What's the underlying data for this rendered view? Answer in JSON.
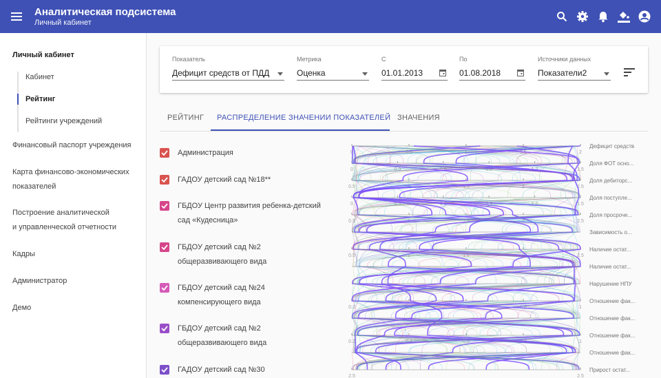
{
  "header": {
    "title": "Аналитическая подсистема",
    "subtitle": "Личный кабинет"
  },
  "sidebar": {
    "section_title": "Личный кабинет",
    "sub_items": [
      {
        "label": "Кабинет"
      },
      {
        "label": "Рейтинг"
      },
      {
        "label": "Рейтинги учреждений"
      }
    ],
    "items": [
      {
        "line1": "Финансовый паспорт учреждения",
        "line2": ""
      },
      {
        "line1": "Карта финансово-экономических",
        "line2": "показателей"
      },
      {
        "line1": "Построение аналитической",
        "line2": "и управленческой отчетности"
      },
      {
        "line1": "Кадры",
        "line2": ""
      },
      {
        "line1": "Администратор",
        "line2": ""
      },
      {
        "line1": "Демо",
        "line2": ""
      }
    ]
  },
  "filters": {
    "indicator": {
      "label": "Показатель",
      "value": "Дефицит средств от ПДД"
    },
    "metric": {
      "label": "Метрика",
      "value": "Оценка"
    },
    "from": {
      "label": "С",
      "value": "01.01.2013"
    },
    "to": {
      "label": "По",
      "value": "01.08.2018"
    },
    "sources": {
      "label": "Источники данных",
      "value": "Показатели2"
    }
  },
  "tabs": [
    {
      "label": "РЕЙТИНГ"
    },
    {
      "label": "РАСПРЕДЕЛЕНИЕ ЗНАЧЕНИИ ПОКАЗАТЕЛЕЙ"
    },
    {
      "label": "ЗНАЧЕНИЯ"
    }
  ],
  "active_tab_index": 1,
  "legend": [
    {
      "line1": "Администрация",
      "line2": "",
      "color": "#d9534f"
    },
    {
      "line1": "ГАДОУ детский сад №18**",
      "line2": "",
      "color": "#d9534f"
    },
    {
      "line1": "ГБДОУ Центр развития ребенка-детский",
      "line2": "сад «Кудесница»",
      "color": "#d6458a"
    },
    {
      "line1": "ГБДОУ детский сад №2",
      "line2": "общеразвивающего вида",
      "color": "#d6458a"
    },
    {
      "line1": "ГБДОУ детский сад №24",
      "line2": "компенсирующего вида",
      "color": "#d65bb8"
    },
    {
      "line1": "ГБДОУ детский сад №2",
      "line2": "общеразвивающего вида",
      "color": "#9a4fc9"
    },
    {
      "line1": "ГАДОУ детский сад №30",
      "line2": "",
      "color": "#7d4fc9"
    }
  ],
  "chart_data": {
    "type": "parallel-coordinates",
    "axes": [
      {
        "label": "Дефицит средств",
        "ticks": [
          "0",
          "0.5",
          "1",
          "1.5",
          "2"
        ]
      },
      {
        "label": "Доля ФОТ осно...",
        "ticks": [
          "0",
          "0.3",
          "0.6",
          "0.9",
          "1.2",
          "1.5"
        ]
      },
      {
        "label": "Доля дебиторс...",
        "ticks": [
          "0.5",
          "1",
          "1.5",
          "2",
          "2.5"
        ]
      },
      {
        "label": "Доля поступле...",
        "ticks": [
          "0",
          "0.3",
          "0.6",
          "0.9",
          "1.2",
          "1.5"
        ]
      },
      {
        "label": "Доля просроче...",
        "ticks": [
          "0.5",
          "1",
          "1.5",
          "2",
          "2.5"
        ]
      },
      {
        "label": "Зависимость о...",
        "ticks": []
      },
      {
        "label": "Наличие остат...",
        "ticks": [
          "0.5",
          "1",
          "1.5",
          "2",
          "2.5"
        ]
      },
      {
        "label": "Наличие остат...",
        "ticks": []
      },
      {
        "label": "Нарушение НПУ",
        "ticks": []
      },
      {
        "label": "Отношение фак...",
        "ticks": [
          "0.2",
          "0.4",
          "0.6",
          "0.8",
          "1"
        ]
      },
      {
        "label": "Отношение фак...",
        "ticks": []
      },
      {
        "label": "Отношение фак...",
        "ticks": [
          "0.2",
          "0.4",
          "0.6",
          "0.8",
          "1"
        ]
      },
      {
        "label": "Отношение фак...",
        "ticks": []
      },
      {
        "label": "Прирост остат...",
        "ticks": [
          "2.5",
          "2.5"
        ]
      }
    ]
  }
}
